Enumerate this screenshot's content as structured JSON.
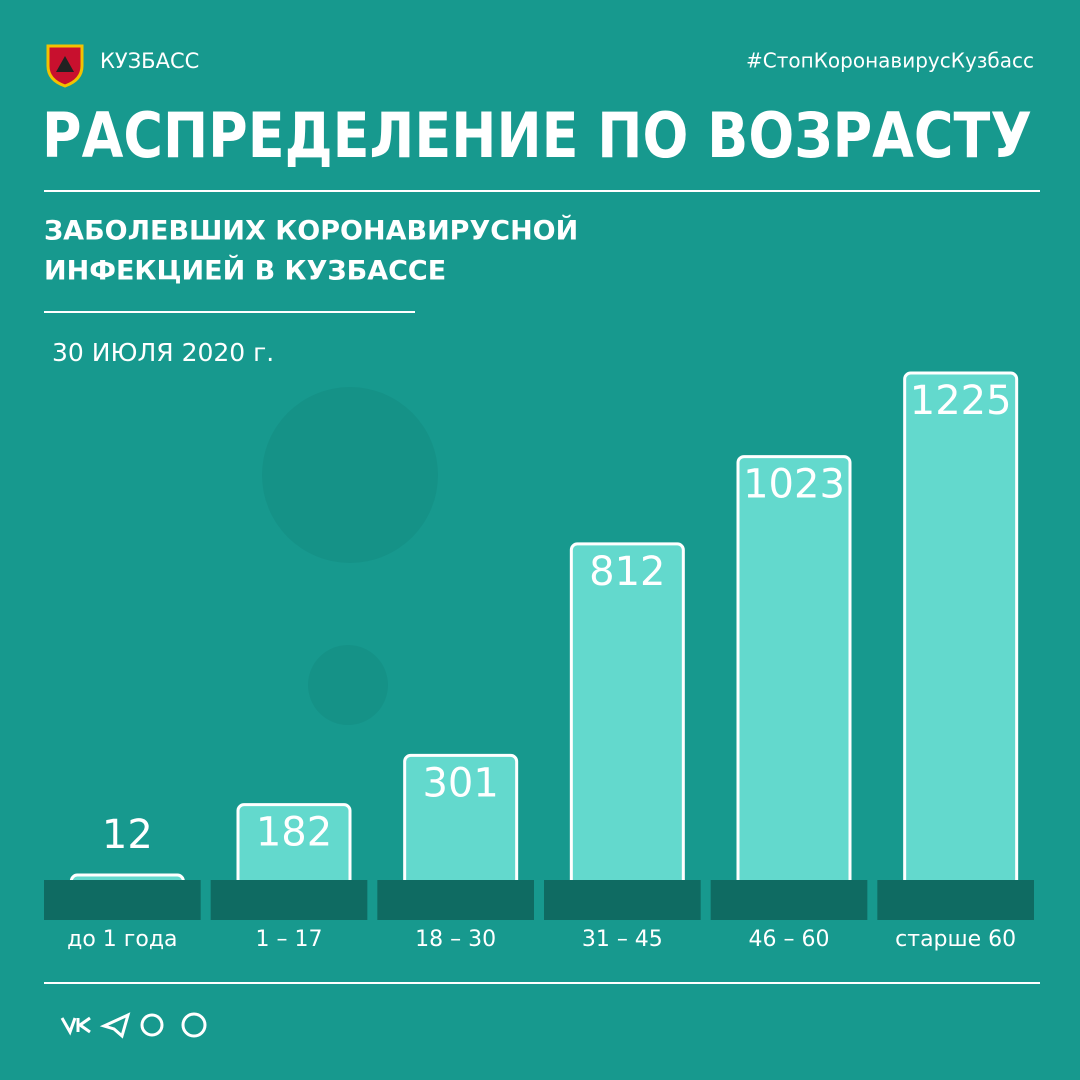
{
  "chart_data": {
    "type": "bar",
    "brand": "КУЗБАСС",
    "hashtag": "#СтопКоронавирусКузбасс",
    "title": "РАСПРЕДЕЛЕНИЕ ПО ВОЗРАСТУ",
    "subtitle": [
      "ЗАБОЛЕВШИХ КОРОНАВИРУСНОЙ",
      "ИНФЕКЦИЕЙ В КУЗБАССЕ"
    ],
    "date": "30 ИЮЛЯ 2020 г.",
    "categories": [
      "до 1 года",
      "1 – 17",
      "18 – 30",
      "31 – 45",
      "46 – 60",
      "старше 60"
    ],
    "values": [
      12,
      182,
      301,
      812,
      1023,
      1225
    ],
    "color": "#63d9cd"
  }
}
